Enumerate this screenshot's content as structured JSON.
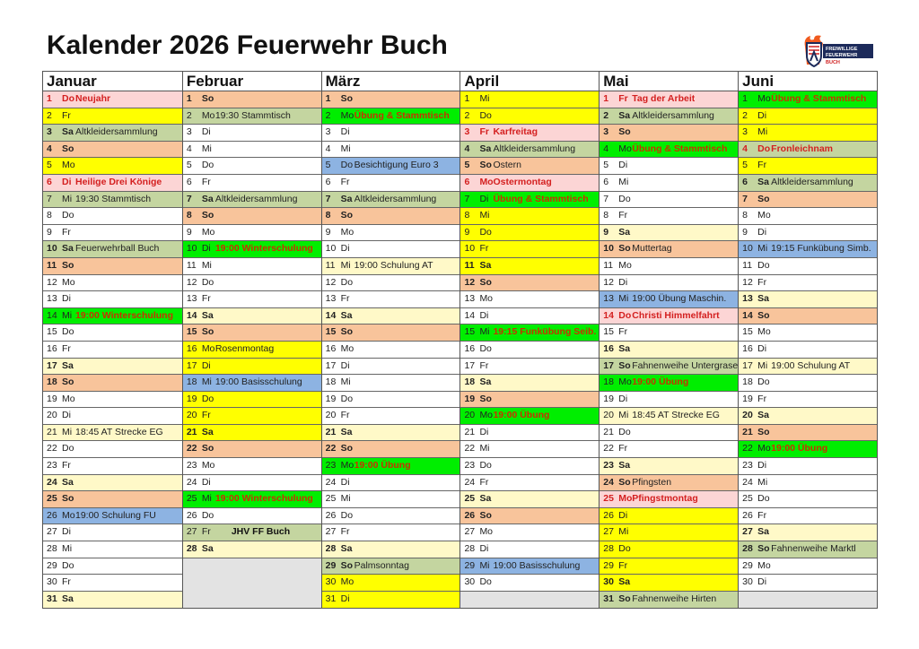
{
  "title": "Kalender 2026 Feuerwehr Buch",
  "logo": {
    "text": "FREIWILLIGE FEUERWEHR BUCH"
  },
  "colors": {
    "w": "#ffffff",
    "y": "#ffff00",
    "ly": "#fff9c8",
    "o": "#f8c49b",
    "g": "#c4d5a0",
    "bg": "#00ee00",
    "b": "#8db3e2",
    "p": "#fcd5d5",
    "gr": "#e3e3e3"
  },
  "months": [
    {
      "name": "Januar",
      "days": [
        {
          "n": "1",
          "wd": "Do",
          "ev": "Neujahr",
          "c": "p",
          "s": "holiday"
        },
        {
          "n": "2",
          "wd": "Fr",
          "c": "y"
        },
        {
          "n": "3",
          "wd": "Sa",
          "ev": "Altkleidersammlung",
          "c": "g",
          "s": "bold"
        },
        {
          "n": "4",
          "wd": "So",
          "c": "o",
          "s": "bold"
        },
        {
          "n": "5",
          "wd": "Mo",
          "c": "y"
        },
        {
          "n": "6",
          "wd": "Di",
          "ev": "Heilige Drei Könige",
          "c": "p",
          "s": "holiday"
        },
        {
          "n": "7",
          "wd": "Mi",
          "ev": "19:30 Stammtisch",
          "c": "g"
        },
        {
          "n": "8",
          "wd": "Do",
          "c": "w"
        },
        {
          "n": "9",
          "wd": "Fr",
          "c": "w"
        },
        {
          "n": "10",
          "wd": "Sa",
          "ev": "Feuerwehrball Buch",
          "c": "g",
          "s": "bold"
        },
        {
          "n": "11",
          "wd": "So",
          "c": "o",
          "s": "bold"
        },
        {
          "n": "12",
          "wd": "Mo",
          "c": "w"
        },
        {
          "n": "13",
          "wd": "Di",
          "c": "w"
        },
        {
          "n": "14",
          "wd": "Mi",
          "ev": "19:00 Winterschulung",
          "c": "bg",
          "s": "training"
        },
        {
          "n": "15",
          "wd": "Do",
          "c": "w"
        },
        {
          "n": "16",
          "wd": "Fr",
          "c": "w"
        },
        {
          "n": "17",
          "wd": "Sa",
          "c": "ly",
          "s": "bold"
        },
        {
          "n": "18",
          "wd": "So",
          "c": "o",
          "s": "bold"
        },
        {
          "n": "19",
          "wd": "Mo",
          "c": "w"
        },
        {
          "n": "20",
          "wd": "Di",
          "c": "w"
        },
        {
          "n": "21",
          "wd": "Mi",
          "ev": "18:45 AT Strecke EG",
          "c": "ly"
        },
        {
          "n": "22",
          "wd": "Do",
          "c": "w"
        },
        {
          "n": "23",
          "wd": "Fr",
          "c": "w"
        },
        {
          "n": "24",
          "wd": "Sa",
          "c": "ly",
          "s": "bold"
        },
        {
          "n": "25",
          "wd": "So",
          "c": "o",
          "s": "bold"
        },
        {
          "n": "26",
          "wd": "Mo",
          "ev": "19:00 Schulung FU",
          "c": "b"
        },
        {
          "n": "27",
          "wd": "Di",
          "c": "w"
        },
        {
          "n": "28",
          "wd": "Mi",
          "c": "w"
        },
        {
          "n": "29",
          "wd": "Do",
          "c": "w"
        },
        {
          "n": "30",
          "wd": "Fr",
          "c": "w"
        },
        {
          "n": "31",
          "wd": "Sa",
          "c": "ly",
          "s": "bold"
        }
      ]
    },
    {
      "name": "Februar",
      "days": [
        {
          "n": "1",
          "wd": "So",
          "c": "o",
          "s": "bold"
        },
        {
          "n": "2",
          "wd": "Mo",
          "ev": "19:30 Stammtisch",
          "c": "g"
        },
        {
          "n": "3",
          "wd": "Di",
          "c": "w"
        },
        {
          "n": "4",
          "wd": "Mi",
          "c": "w"
        },
        {
          "n": "5",
          "wd": "Do",
          "c": "w"
        },
        {
          "n": "6",
          "wd": "Fr",
          "c": "w"
        },
        {
          "n": "7",
          "wd": "Sa",
          "ev": "Altkleidersammlung",
          "c": "g",
          "s": "bold"
        },
        {
          "n": "8",
          "wd": "So",
          "c": "o",
          "s": "bold"
        },
        {
          "n": "9",
          "wd": "Mo",
          "c": "w"
        },
        {
          "n": "10",
          "wd": "Di",
          "ev": "19:00 Winterschulung",
          "c": "bg",
          "s": "training"
        },
        {
          "n": "11",
          "wd": "Mi",
          "c": "w"
        },
        {
          "n": "12",
          "wd": "Do",
          "c": "w"
        },
        {
          "n": "13",
          "wd": "Fr",
          "c": "w"
        },
        {
          "n": "14",
          "wd": "Sa",
          "c": "ly",
          "s": "bold"
        },
        {
          "n": "15",
          "wd": "So",
          "c": "o",
          "s": "bold"
        },
        {
          "n": "16",
          "wd": "Mo",
          "ev": "Rosenmontag",
          "c": "y"
        },
        {
          "n": "17",
          "wd": "Di",
          "c": "y"
        },
        {
          "n": "18",
          "wd": "Mi",
          "ev": "19:00 Basisschulung",
          "c": "b"
        },
        {
          "n": "19",
          "wd": "Do",
          "c": "y"
        },
        {
          "n": "20",
          "wd": "Fr",
          "c": "y"
        },
        {
          "n": "21",
          "wd": "Sa",
          "c": "y",
          "s": "bold"
        },
        {
          "n": "22",
          "wd": "So",
          "c": "o",
          "s": "bold"
        },
        {
          "n": "23",
          "wd": "Mo",
          "c": "w"
        },
        {
          "n": "24",
          "wd": "Di",
          "c": "w"
        },
        {
          "n": "25",
          "wd": "Mi",
          "ev": "19:00 Winterschulung",
          "c": "bg",
          "s": "training"
        },
        {
          "n": "26",
          "wd": "Do",
          "c": "w"
        },
        {
          "n": "27",
          "wd": "Fr",
          "ev": "JHV FF Buch",
          "c": "g",
          "s": "center"
        },
        {
          "n": "28",
          "wd": "Sa",
          "c": "ly",
          "s": "bold"
        },
        {
          "c": "gr",
          "s": "empty"
        },
        {
          "c": "gr",
          "s": "empty"
        },
        {
          "c": "gr",
          "s": "empty"
        }
      ]
    },
    {
      "name": "März",
      "days": [
        {
          "n": "1",
          "wd": "So",
          "c": "o",
          "s": "bold"
        },
        {
          "n": "2",
          "wd": "Mo",
          "ev": "Übung & Stammtisch",
          "c": "bg",
          "s": "training"
        },
        {
          "n": "3",
          "wd": "Di",
          "c": "w"
        },
        {
          "n": "4",
          "wd": "Mi",
          "c": "w"
        },
        {
          "n": "5",
          "wd": "Do",
          "ev": "Besichtigung Euro 3",
          "c": "b"
        },
        {
          "n": "6",
          "wd": "Fr",
          "c": "w"
        },
        {
          "n": "7",
          "wd": "Sa",
          "ev": "Altkleidersammlung",
          "c": "g",
          "s": "bold"
        },
        {
          "n": "8",
          "wd": "So",
          "c": "o",
          "s": "bold"
        },
        {
          "n": "9",
          "wd": "Mo",
          "c": "w"
        },
        {
          "n": "10",
          "wd": "Di",
          "c": "w"
        },
        {
          "n": "11",
          "wd": "Mi",
          "ev": "19:00 Schulung AT",
          "c": "ly"
        },
        {
          "n": "12",
          "wd": "Do",
          "c": "w"
        },
        {
          "n": "13",
          "wd": "Fr",
          "c": "w"
        },
        {
          "n": "14",
          "wd": "Sa",
          "c": "ly",
          "s": "bold"
        },
        {
          "n": "15",
          "wd": "So",
          "c": "o",
          "s": "bold"
        },
        {
          "n": "16",
          "wd": "Mo",
          "c": "w"
        },
        {
          "n": "17",
          "wd": "Di",
          "c": "w"
        },
        {
          "n": "18",
          "wd": "Mi",
          "c": "w"
        },
        {
          "n": "19",
          "wd": "Do",
          "c": "w"
        },
        {
          "n": "20",
          "wd": "Fr",
          "c": "w"
        },
        {
          "n": "21",
          "wd": "Sa",
          "c": "ly",
          "s": "bold"
        },
        {
          "n": "22",
          "wd": "So",
          "c": "o",
          "s": "bold"
        },
        {
          "n": "23",
          "wd": "Mo",
          "ev": "19:00 Übung",
          "c": "bg",
          "s": "training"
        },
        {
          "n": "24",
          "wd": "Di",
          "c": "w"
        },
        {
          "n": "25",
          "wd": "Mi",
          "c": "w"
        },
        {
          "n": "26",
          "wd": "Do",
          "c": "w"
        },
        {
          "n": "27",
          "wd": "Fr",
          "c": "w"
        },
        {
          "n": "28",
          "wd": "Sa",
          "c": "ly",
          "s": "bold"
        },
        {
          "n": "29",
          "wd": "So",
          "ev": "Palmsonntag",
          "c": "g",
          "s": "bold"
        },
        {
          "n": "30",
          "wd": "Mo",
          "c": "y"
        },
        {
          "n": "31",
          "wd": "Di",
          "c": "y"
        }
      ]
    },
    {
      "name": "April",
      "days": [
        {
          "n": "1",
          "wd": "Mi",
          "c": "y"
        },
        {
          "n": "2",
          "wd": "Do",
          "c": "y"
        },
        {
          "n": "3",
          "wd": "Fr",
          "ev": "Karfreitag",
          "c": "p",
          "s": "holiday"
        },
        {
          "n": "4",
          "wd": "Sa",
          "ev": "Altkleidersammlung",
          "c": "g",
          "s": "bold"
        },
        {
          "n": "5",
          "wd": "So",
          "ev": "Ostern",
          "c": "o",
          "s": "bold"
        },
        {
          "n": "6",
          "wd": "Mo",
          "ev": "Ostermontag",
          "c": "p",
          "s": "holiday"
        },
        {
          "n": "7",
          "wd": "Di",
          "ev": "Übung & Stammtisch",
          "c": "bg",
          "s": "training"
        },
        {
          "n": "8",
          "wd": "Mi",
          "c": "y"
        },
        {
          "n": "9",
          "wd": "Do",
          "c": "y"
        },
        {
          "n": "10",
          "wd": "Fr",
          "c": "y"
        },
        {
          "n": "11",
          "wd": "Sa",
          "c": "y",
          "s": "bold"
        },
        {
          "n": "12",
          "wd": "So",
          "c": "o",
          "s": "bold"
        },
        {
          "n": "13",
          "wd": "Mo",
          "c": "w"
        },
        {
          "n": "14",
          "wd": "Di",
          "c": "w"
        },
        {
          "n": "15",
          "wd": "Mi",
          "ev": "19:15 Funkübung Seib.",
          "c": "bg",
          "s": "training"
        },
        {
          "n": "16",
          "wd": "Do",
          "c": "w"
        },
        {
          "n": "17",
          "wd": "Fr",
          "c": "w"
        },
        {
          "n": "18",
          "wd": "Sa",
          "c": "ly",
          "s": "bold"
        },
        {
          "n": "19",
          "wd": "So",
          "c": "o",
          "s": "bold"
        },
        {
          "n": "20",
          "wd": "Mo",
          "ev": "19:00 Übung",
          "c": "bg",
          "s": "training"
        },
        {
          "n": "21",
          "wd": "Di",
          "c": "w"
        },
        {
          "n": "22",
          "wd": "Mi",
          "c": "w"
        },
        {
          "n": "23",
          "wd": "Do",
          "c": "w"
        },
        {
          "n": "24",
          "wd": "Fr",
          "c": "w"
        },
        {
          "n": "25",
          "wd": "Sa",
          "c": "ly",
          "s": "bold"
        },
        {
          "n": "26",
          "wd": "So",
          "c": "o",
          "s": "bold"
        },
        {
          "n": "27",
          "wd": "Mo",
          "c": "w"
        },
        {
          "n": "28",
          "wd": "Di",
          "c": "w"
        },
        {
          "n": "29",
          "wd": "Mi",
          "ev": "19:00 Basisschulung",
          "c": "b"
        },
        {
          "n": "30",
          "wd": "Do",
          "c": "w"
        },
        {
          "c": "gr",
          "s": "empty"
        }
      ]
    },
    {
      "name": "Mai",
      "days": [
        {
          "n": "1",
          "wd": "Fr",
          "ev": "Tag der Arbeit",
          "c": "p",
          "s": "holiday"
        },
        {
          "n": "2",
          "wd": "Sa",
          "ev": "Altkleidersammlung",
          "c": "g",
          "s": "bold"
        },
        {
          "n": "3",
          "wd": "So",
          "c": "o",
          "s": "bold"
        },
        {
          "n": "4",
          "wd": "Mo",
          "ev": "Übung & Stammtisch",
          "c": "bg",
          "s": "training"
        },
        {
          "n": "5",
          "wd": "Di",
          "c": "w"
        },
        {
          "n": "6",
          "wd": "Mi",
          "c": "w"
        },
        {
          "n": "7",
          "wd": "Do",
          "c": "w"
        },
        {
          "n": "8",
          "wd": "Fr",
          "c": "w"
        },
        {
          "n": "9",
          "wd": "Sa",
          "c": "ly",
          "s": "bold"
        },
        {
          "n": "10",
          "wd": "So",
          "ev": "Muttertag",
          "c": "o",
          "s": "bold"
        },
        {
          "n": "11",
          "wd": "Mo",
          "c": "w"
        },
        {
          "n": "12",
          "wd": "Di",
          "c": "w"
        },
        {
          "n": "13",
          "wd": "Mi",
          "ev": "19:00 Übung Maschin.",
          "c": "b"
        },
        {
          "n": "14",
          "wd": "Do",
          "ev": "Christi Himmelfahrt",
          "c": "p",
          "s": "holiday"
        },
        {
          "n": "15",
          "wd": "Fr",
          "c": "w"
        },
        {
          "n": "16",
          "wd": "Sa",
          "c": "ly",
          "s": "bold"
        },
        {
          "n": "17",
          "wd": "So",
          "ev": "Fahnenweihe Untergrase",
          "c": "g",
          "s": "bold"
        },
        {
          "n": "18",
          "wd": "Mo",
          "ev": "19:00 Übung",
          "c": "bg",
          "s": "training"
        },
        {
          "n": "19",
          "wd": "Di",
          "c": "w"
        },
        {
          "n": "20",
          "wd": "Mi",
          "ev": "18:45 AT Strecke EG",
          "c": "ly"
        },
        {
          "n": "21",
          "wd": "Do",
          "c": "w"
        },
        {
          "n": "22",
          "wd": "Fr",
          "c": "w"
        },
        {
          "n": "23",
          "wd": "Sa",
          "c": "ly",
          "s": "bold"
        },
        {
          "n": "24",
          "wd": "So",
          "ev": "Pfingsten",
          "c": "o",
          "s": "bold"
        },
        {
          "n": "25",
          "wd": "Mo",
          "ev": "Pfingstmontag",
          "c": "p",
          "s": "holiday"
        },
        {
          "n": "26",
          "wd": "Di",
          "c": "y"
        },
        {
          "n": "27",
          "wd": "Mi",
          "c": "y"
        },
        {
          "n": "28",
          "wd": "Do",
          "c": "y"
        },
        {
          "n": "29",
          "wd": "Fr",
          "c": "y"
        },
        {
          "n": "30",
          "wd": "Sa",
          "c": "y",
          "s": "bold"
        },
        {
          "n": "31",
          "wd": "So",
          "ev": "Fahnenweihe Hirten",
          "c": "g",
          "s": "bold"
        }
      ]
    },
    {
      "name": "Juni",
      "days": [
        {
          "n": "1",
          "wd": "Mo",
          "ev": "Übung & Stammtisch",
          "c": "bg",
          "s": "training"
        },
        {
          "n": "2",
          "wd": "Di",
          "c": "y"
        },
        {
          "n": "3",
          "wd": "Mi",
          "c": "y"
        },
        {
          "n": "4",
          "wd": "Do",
          "ev": "Fronleichnam",
          "c": "g",
          "s": "holiday"
        },
        {
          "n": "5",
          "wd": "Fr",
          "c": "y"
        },
        {
          "n": "6",
          "wd": "Sa",
          "ev": "Altkleidersammlung",
          "c": "g",
          "s": "bold"
        },
        {
          "n": "7",
          "wd": "So",
          "c": "o",
          "s": "bold"
        },
        {
          "n": "8",
          "wd": "Mo",
          "c": "w"
        },
        {
          "n": "9",
          "wd": "Di",
          "c": "w"
        },
        {
          "n": "10",
          "wd": "Mi",
          "ev": "19:15 Funkübung Simb.",
          "c": "b"
        },
        {
          "n": "11",
          "wd": "Do",
          "c": "w"
        },
        {
          "n": "12",
          "wd": "Fr",
          "c": "w"
        },
        {
          "n": "13",
          "wd": "Sa",
          "c": "ly",
          "s": "bold"
        },
        {
          "n": "14",
          "wd": "So",
          "c": "o",
          "s": "bold"
        },
        {
          "n": "15",
          "wd": "Mo",
          "c": "w"
        },
        {
          "n": "16",
          "wd": "Di",
          "c": "w"
        },
        {
          "n": "17",
          "wd": "Mi",
          "ev": "19:00 Schulung AT",
          "c": "ly"
        },
        {
          "n": "18",
          "wd": "Do",
          "c": "w"
        },
        {
          "n": "19",
          "wd": "Fr",
          "c": "w"
        },
        {
          "n": "20",
          "wd": "Sa",
          "c": "ly",
          "s": "bold"
        },
        {
          "n": "21",
          "wd": "So",
          "c": "o",
          "s": "bold"
        },
        {
          "n": "22",
          "wd": "Mo",
          "ev": "19:00 Übung",
          "c": "bg",
          "s": "training"
        },
        {
          "n": "23",
          "wd": "Di",
          "c": "w"
        },
        {
          "n": "24",
          "wd": "Mi",
          "c": "w"
        },
        {
          "n": "25",
          "wd": "Do",
          "c": "w"
        },
        {
          "n": "26",
          "wd": "Fr",
          "c": "w"
        },
        {
          "n": "27",
          "wd": "Sa",
          "c": "ly",
          "s": "bold"
        },
        {
          "n": "28",
          "wd": "So",
          "ev": "Fahnenweihe Marktl",
          "c": "g",
          "s": "bold"
        },
        {
          "n": "29",
          "wd": "Mo",
          "c": "w"
        },
        {
          "n": "30",
          "wd": "Di",
          "c": "w"
        },
        {
          "c": "gr",
          "s": "empty"
        }
      ]
    }
  ]
}
